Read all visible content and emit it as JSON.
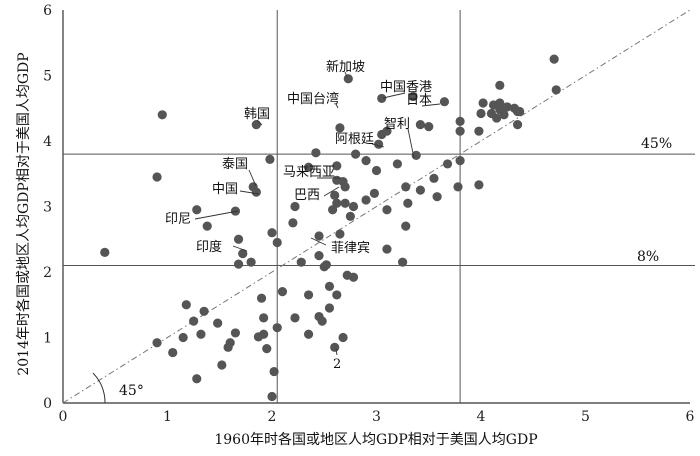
{
  "chart_data": {
    "type": "scatter",
    "xlabel": "1960年时各国或地区人均GDP相对于美国人均GDP",
    "ylabel": "2014年时各国或地区人均GDP相对于美国人均GDP",
    "xlim": [
      0,
      6
    ],
    "ylim": [
      0,
      6
    ],
    "x_ticks": [
      "0",
      "1",
      "2",
      "3",
      "4",
      "5",
      "6"
    ],
    "y_ticks": [
      "0",
      "1",
      "2",
      "3",
      "4",
      "5",
      "6"
    ],
    "grid": false,
    "reference_lines": {
      "vertical": [
        2.05,
        3.8
      ],
      "horizontal": [
        {
          "y": 2.1,
          "label": "8%"
        },
        {
          "y": 3.8,
          "label": "45%"
        }
      ],
      "diagonal_label": "45°"
    },
    "point_color": "#555555",
    "points": [
      [
        0.4,
        2.3
      ],
      [
        0.9,
        3.45
      ],
      [
        0.95,
        4.4
      ],
      [
        0.9,
        0.92
      ],
      [
        1.05,
        0.77
      ],
      [
        1.15,
        1.0
      ],
      [
        1.18,
        1.5
      ],
      [
        1.25,
        1.25
      ],
      [
        1.28,
        0.37
      ],
      [
        1.32,
        1.05
      ],
      [
        1.35,
        1.4
      ],
      [
        1.38,
        2.7
      ],
      [
        1.28,
        2.95
      ],
      [
        1.48,
        1.22
      ],
      [
        1.52,
        0.58
      ],
      [
        1.58,
        0.85
      ],
      [
        1.6,
        0.92
      ],
      [
        1.65,
        1.07
      ],
      [
        1.65,
        2.93
      ],
      [
        1.68,
        2.5
      ],
      [
        1.72,
        2.28
      ],
      [
        1.68,
        2.12
      ],
      [
        1.8,
        2.15
      ],
      [
        1.82,
        3.3
      ],
      [
        1.85,
        3.22
      ],
      [
        1.85,
        4.25
      ],
      [
        1.87,
        1.01
      ],
      [
        1.92,
        1.05
      ],
      [
        1.92,
        1.3
      ],
      [
        1.95,
        0.83
      ],
      [
        1.9,
        1.6
      ],
      [
        2.0,
        0.1
      ],
      [
        2.02,
        0.48
      ],
      [
        2.05,
        1.15
      ],
      [
        2.0,
        2.6
      ],
      [
        2.05,
        2.45
      ],
      [
        1.98,
        3.72
      ],
      [
        2.1,
        1.7
      ],
      [
        2.2,
        2.75
      ],
      [
        2.22,
        3.0
      ],
      [
        2.22,
        1.3
      ],
      [
        2.28,
        2.15
      ],
      [
        2.35,
        1.05
      ],
      [
        2.35,
        1.65
      ],
      [
        2.35,
        3.6
      ],
      [
        2.42,
        3.82
      ],
      [
        2.45,
        2.25
      ],
      [
        2.45,
        2.55
      ],
      [
        2.45,
        1.32
      ],
      [
        2.48,
        1.25
      ],
      [
        2.5,
        2.08
      ],
      [
        2.52,
        2.11
      ],
      [
        2.55,
        1.45
      ],
      [
        2.55,
        1.78
      ],
      [
        2.58,
        2.95
      ],
      [
        2.6,
        3.17
      ],
      [
        2.62,
        3.62
      ],
      [
        2.62,
        3.4
      ],
      [
        2.62,
        3.05
      ],
      [
        2.65,
        2.58
      ],
      [
        2.68,
        1.0
      ],
      [
        2.6,
        0.85
      ],
      [
        2.62,
        1.65
      ],
      [
        2.65,
        4.2
      ],
      [
        2.68,
        3.38
      ],
      [
        2.7,
        3.3
      ],
      [
        2.7,
        3.05
      ],
      [
        2.72,
        1.95
      ],
      [
        2.73,
        4.95
      ],
      [
        2.75,
        2.85
      ],
      [
        2.78,
        1.92
      ],
      [
        2.78,
        3.0
      ],
      [
        2.8,
        3.8
      ],
      [
        2.9,
        3.1
      ],
      [
        2.9,
        3.7
      ],
      [
        2.98,
        3.2
      ],
      [
        3.0,
        3.55
      ],
      [
        3.02,
        3.95
      ],
      [
        3.05,
        4.1
      ],
      [
        3.05,
        4.65
      ],
      [
        3.1,
        2.95
      ],
      [
        3.1,
        2.35
      ],
      [
        3.1,
        4.15
      ],
      [
        3.2,
        3.65
      ],
      [
        3.25,
        2.15
      ],
      [
        3.28,
        2.7
      ],
      [
        3.28,
        3.3
      ],
      [
        3.3,
        3.05
      ],
      [
        3.35,
        4.68
      ],
      [
        3.38,
        3.78
      ],
      [
        3.42,
        3.25
      ],
      [
        3.42,
        4.25
      ],
      [
        3.5,
        4.22
      ],
      [
        3.55,
        3.43
      ],
      [
        3.58,
        3.15
      ],
      [
        3.65,
        4.6
      ],
      [
        3.68,
        3.65
      ],
      [
        3.78,
        3.3
      ],
      [
        3.8,
        4.3
      ],
      [
        3.8,
        3.7
      ],
      [
        3.8,
        4.15
      ],
      [
        3.98,
        3.33
      ],
      [
        3.98,
        4.15
      ],
      [
        4.0,
        4.42
      ],
      [
        4.02,
        4.58
      ],
      [
        4.1,
        4.42
      ],
      [
        4.12,
        4.55
      ],
      [
        4.15,
        4.35
      ],
      [
        4.18,
        4.48
      ],
      [
        4.18,
        4.58
      ],
      [
        4.18,
        4.85
      ],
      [
        4.22,
        4.4
      ],
      [
        4.25,
        4.52
      ],
      [
        4.32,
        4.5
      ],
      [
        4.35,
        4.45
      ],
      [
        4.35,
        4.25
      ],
      [
        4.37,
        4.45
      ],
      [
        4.7,
        5.25
      ],
      [
        4.72,
        4.78
      ]
    ],
    "annotations": [
      {
        "id": "xinjiapo",
        "text": "新加坡"
      },
      {
        "id": "hongkong",
        "text": "中国香港"
      },
      {
        "id": "taiwan",
        "text": "中国台湾"
      },
      {
        "id": "riben",
        "text": "日本"
      },
      {
        "id": "hanguo",
        "text": "韩国"
      },
      {
        "id": "zhili",
        "text": "智利"
      },
      {
        "id": "agenting",
        "text": "阿根廷"
      },
      {
        "id": "taiguo",
        "text": "泰国"
      },
      {
        "id": "malaixiya",
        "text": "马来西亚"
      },
      {
        "id": "zhongguo",
        "text": "中国"
      },
      {
        "id": "baxi",
        "text": "巴西"
      },
      {
        "id": "yinni",
        "text": "印尼"
      },
      {
        "id": "yindu",
        "text": "印度"
      },
      {
        "id": "feilvbin",
        "text": "菲律宾"
      },
      {
        "id": "two",
        "text": "2"
      }
    ]
  }
}
